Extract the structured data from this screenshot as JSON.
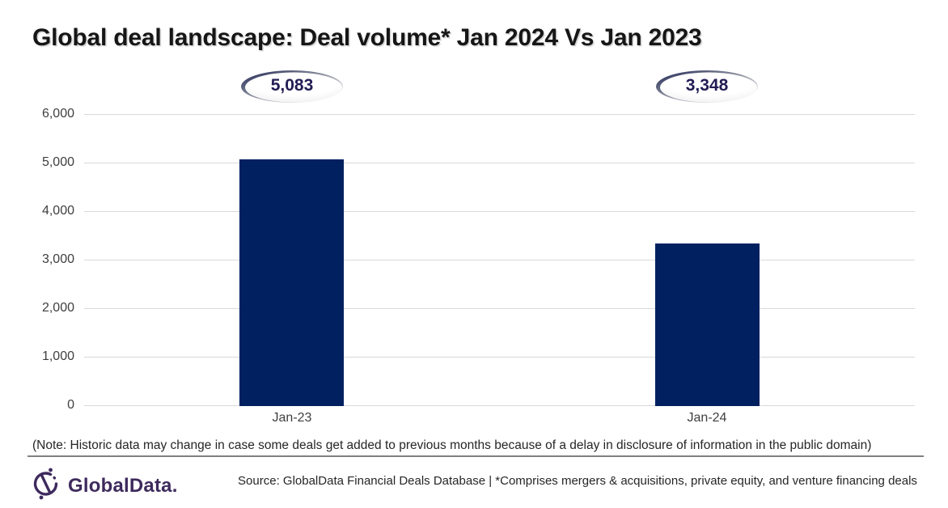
{
  "title": "Global deal landscape: Deal volume* Jan 2024 Vs Jan 2023",
  "note": "(Note: Historic data may change in case some deals get added to previous months because of a delay in disclosure of information in the public domain)",
  "footer": {
    "logo_text": "GlobalData.",
    "source": "Source: GlobalData Financial Deals Database | *Comprises mergers & acquisitions, private equity, and venture financing deals"
  },
  "colors": {
    "bar": "#002060",
    "badge_text": "#221c54",
    "gridline": "#d9d9d9",
    "logo_purple": "#3e2a5d"
  },
  "chart_data": {
    "type": "bar",
    "title": "Global deal landscape: Deal volume* Jan 2024 Vs Jan 2023",
    "categories": [
      "Jan-23",
      "Jan-24"
    ],
    "values": [
      5083,
      3348
    ],
    "value_labels": [
      "5,083",
      "3,348"
    ],
    "ylim": [
      0,
      6000
    ],
    "ytick_interval": 1000,
    "ytick_labels": [
      "0",
      "1,000",
      "2,000",
      "3,000",
      "4,000",
      "5,000",
      "6,000"
    ],
    "grid": true,
    "legend_position": "none",
    "bar_color": "#002060"
  }
}
